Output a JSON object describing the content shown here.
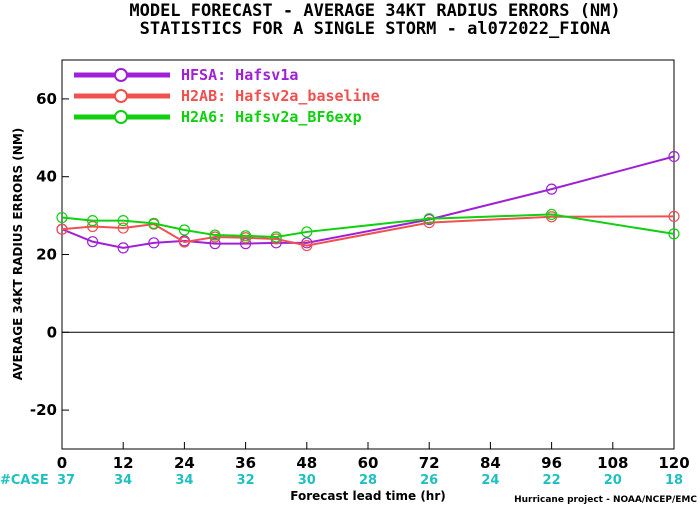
{
  "chart_data": {
    "type": "line",
    "title_line1": "MODEL FORECAST - AVERAGE 34KT RADIUS ERRORS (NM)",
    "title_line2": "STATISTICS FOR A SINGLE STORM - al072022_FIONA",
    "ylabel": "AVERAGE 34KT RADIUS ERRORS (NM)",
    "xlabel": "Forecast lead time (hr)",
    "credit": "Hurricane project - NOAA/NCEP/EMC",
    "ylim": [
      -30,
      70
    ],
    "xlim": [
      0,
      120
    ],
    "y_ticks": [
      -20,
      0,
      20,
      40,
      60
    ],
    "x_ticks": [
      0,
      12,
      24,
      36,
      48,
      60,
      72,
      84,
      96,
      108,
      120
    ],
    "legend_position": "top-left",
    "case_label": "#CASE",
    "case_label_color": "#20c0c0",
    "cases": [
      {
        "x": 0,
        "n": "37"
      },
      {
        "x": 12,
        "n": "34"
      },
      {
        "x": 24,
        "n": "34"
      },
      {
        "x": 36,
        "n": "32"
      },
      {
        "x": 48,
        "n": "30"
      },
      {
        "x": 60,
        "n": "28"
      },
      {
        "x": 72,
        "n": "26"
      },
      {
        "x": 84,
        "n": "24"
      },
      {
        "x": 96,
        "n": "22"
      },
      {
        "x": 108,
        "n": "20"
      },
      {
        "x": 120,
        "n": "18"
      }
    ],
    "series": [
      {
        "name": "HFSA: Hafsv1a",
        "color": "#a020d8",
        "x": [
          0,
          6,
          12,
          18,
          24,
          30,
          36,
          42,
          48,
          72,
          96,
          120
        ],
        "values": [
          26.5,
          23.3,
          21.7,
          23.0,
          23.5,
          22.8,
          22.8,
          23.0,
          23.0,
          29.0,
          36.8,
          45.2
        ]
      },
      {
        "name": "H2AB: Hafsv2a_baseline",
        "color": "#f05050",
        "x": [
          0,
          6,
          12,
          18,
          24,
          30,
          36,
          42,
          48,
          72,
          96,
          120
        ],
        "values": [
          26.5,
          27.2,
          26.8,
          27.8,
          23.2,
          24.5,
          24.3,
          24.0,
          22.3,
          28.2,
          29.7,
          29.8
        ]
      },
      {
        "name": "H2A6: Hafsv2a_BF6exp",
        "color": "#10d010",
        "x": [
          0,
          6,
          12,
          18,
          24,
          30,
          36,
          42,
          48,
          72,
          96,
          120
        ],
        "values": [
          29.5,
          28.7,
          28.7,
          28.0,
          26.3,
          25.0,
          24.8,
          24.5,
          25.8,
          29.2,
          30.3,
          25.3
        ]
      }
    ]
  }
}
